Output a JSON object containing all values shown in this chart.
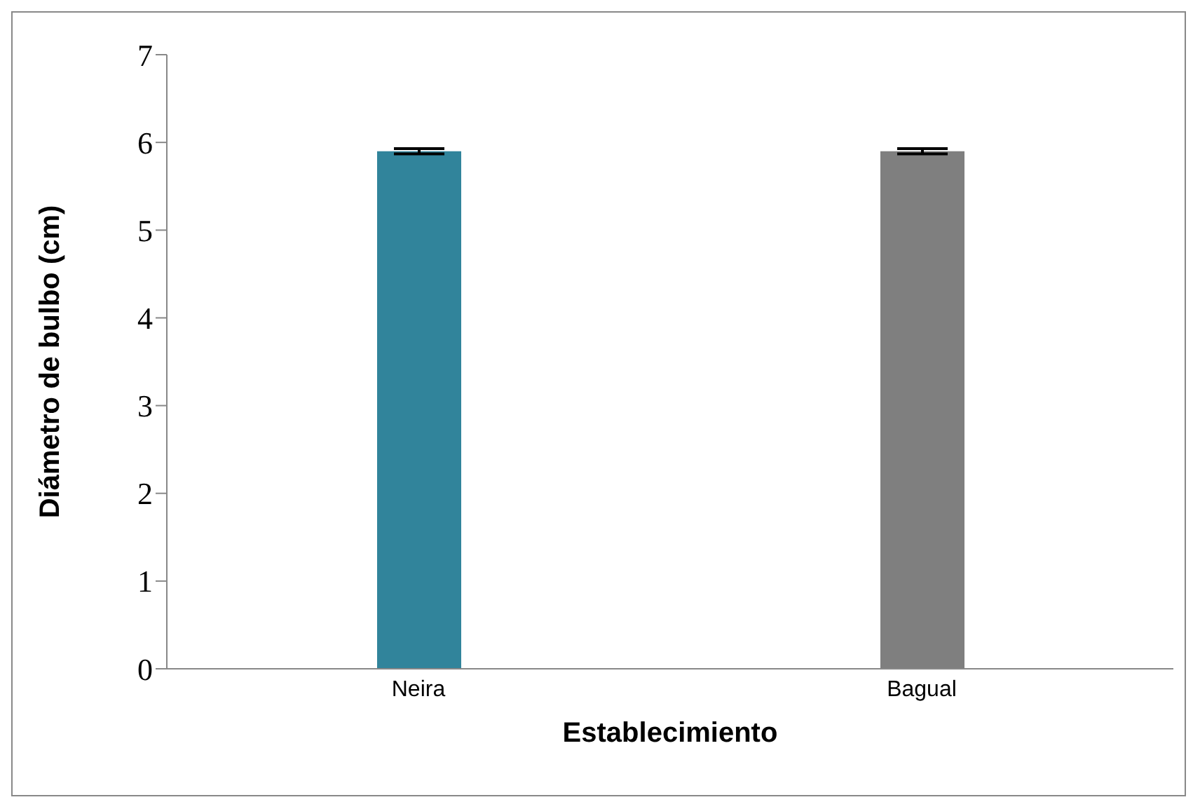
{
  "chart_data": {
    "type": "bar",
    "xlabel": "Establecimiento",
    "ylabel": "Diámetro de bulbo  (cm)",
    "categories": [
      "Neira",
      "Bagual"
    ],
    "values": [
      5.9,
      5.9
    ],
    "colors": [
      "#31849b",
      "#7f7f7f"
    ],
    "errors": [
      0.03,
      0.03
    ],
    "ylim": [
      0,
      7
    ],
    "yticks": [
      0,
      1,
      2,
      3,
      4,
      5,
      6,
      7
    ],
    "grid": false,
    "legend": false
  }
}
